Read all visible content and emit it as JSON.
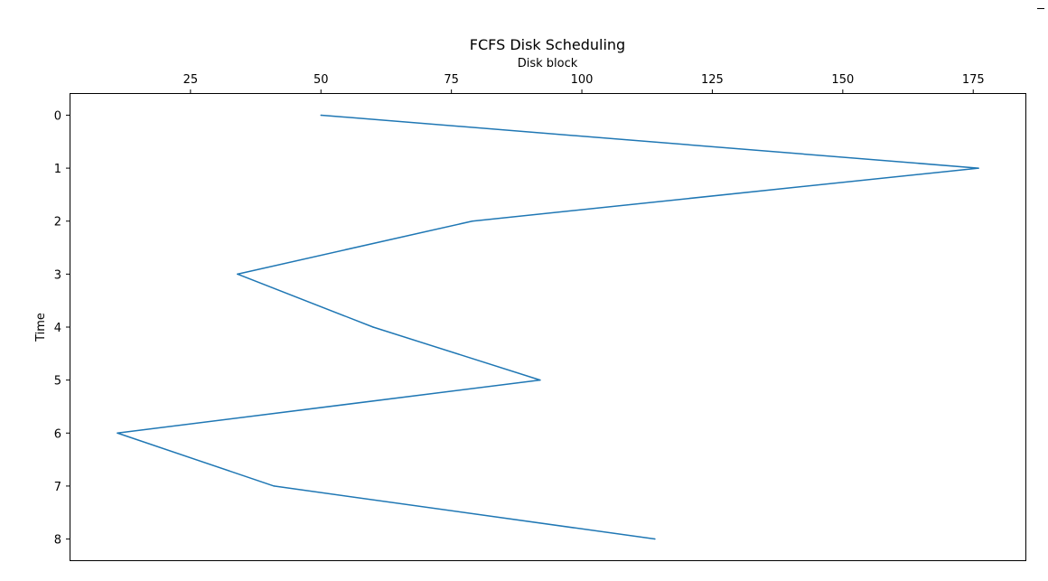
{
  "chart_data": {
    "type": "line",
    "title": "FCFS Disk Scheduling",
    "xlabel": "Disk block",
    "ylabel": "Time",
    "x_axis_position": "top",
    "y_axis_inverted": true,
    "xlim": [
      2,
      185
    ],
    "ylim": [
      8.4,
      -0.4
    ],
    "xticks": [
      25,
      50,
      75,
      100,
      125,
      150,
      175
    ],
    "yticks": [
      0,
      1,
      2,
      3,
      4,
      5,
      6,
      7,
      8
    ],
    "grid": false,
    "legend": "none",
    "series": [
      {
        "color": "#1f77b4",
        "points": [
          {
            "x": 50,
            "y": 0
          },
          {
            "x": 176,
            "y": 1
          },
          {
            "x": 79,
            "y": 2
          },
          {
            "x": 34,
            "y": 3
          },
          {
            "x": 60,
            "y": 4
          },
          {
            "x": 92,
            "y": 5
          },
          {
            "x": 11,
            "y": 6
          },
          {
            "x": 41,
            "y": 7
          },
          {
            "x": 114,
            "y": 8
          }
        ]
      }
    ]
  }
}
